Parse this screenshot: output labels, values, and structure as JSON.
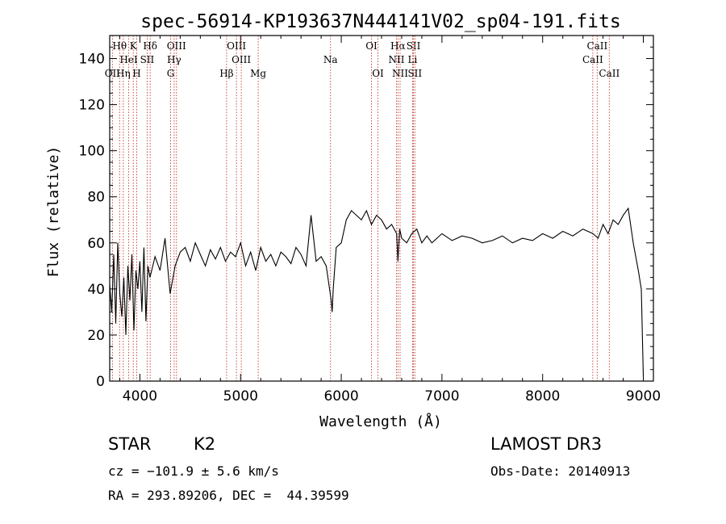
{
  "chart_data": {
    "type": "line",
    "title": "spec-56914-KP193637N444141V02_sp04-191.fits",
    "xlabel": "Wavelength (Å)",
    "ylabel": "Flux (relative)",
    "xlim": [
      3700,
      9100
    ],
    "ylim": [
      0,
      150
    ],
    "xticks": [
      4000,
      5000,
      6000,
      7000,
      8000,
      9000
    ],
    "yticks": [
      0,
      20,
      40,
      60,
      80,
      100,
      120,
      140
    ],
    "xtick_labels": [
      "4000",
      "5000",
      "6000",
      "7000",
      "8000",
      "9000"
    ],
    "ytick_labels": [
      "0",
      "20",
      "40",
      "60",
      "80",
      "100",
      "120",
      "140"
    ],
    "grid": false,
    "series": [
      {
        "name": "flux",
        "x": [
          3700,
          3720,
          3740,
          3760,
          3780,
          3800,
          3820,
          3840,
          3860,
          3880,
          3900,
          3920,
          3940,
          3960,
          3980,
          4000,
          4020,
          4040,
          4060,
          4080,
          4100,
          4150,
          4200,
          4250,
          4300,
          4350,
          4400,
          4450,
          4500,
          4550,
          4600,
          4650,
          4700,
          4750,
          4800,
          4850,
          4900,
          4950,
          5000,
          5050,
          5100,
          5150,
          5200,
          5250,
          5300,
          5350,
          5400,
          5450,
          5500,
          5550,
          5600,
          5650,
          5700,
          5750,
          5800,
          5850,
          5900,
          5910,
          5920,
          5950,
          6000,
          6050,
          6100,
          6150,
          6200,
          6250,
          6300,
          6350,
          6400,
          6450,
          6500,
          6550,
          6563,
          6580,
          6600,
          6650,
          6700,
          6750,
          6800,
          6850,
          6900,
          6950,
          7000,
          7100,
          7200,
          7300,
          7400,
          7500,
          7600,
          7700,
          7800,
          7900,
          8000,
          8100,
          8200,
          8300,
          8400,
          8500,
          8550,
          8600,
          8650,
          8700,
          8750,
          8800,
          8850,
          8900,
          8950,
          8980,
          9000
        ],
        "y": [
          42,
          30,
          55,
          25,
          60,
          38,
          28,
          45,
          20,
          50,
          35,
          55,
          22,
          48,
          40,
          52,
          30,
          58,
          26,
          50,
          45,
          54,
          48,
          62,
          38,
          50,
          56,
          58,
          52,
          60,
          55,
          50,
          57,
          53,
          58,
          52,
          56,
          54,
          60,
          50,
          56,
          48,
          58,
          52,
          55,
          50,
          56,
          54,
          51,
          58,
          55,
          50,
          72,
          52,
          54,
          50,
          35,
          30,
          40,
          58,
          60,
          70,
          74,
          72,
          70,
          74,
          68,
          72,
          70,
          66,
          68,
          64,
          52,
          66,
          62,
          60,
          64,
          66,
          60,
          63,
          60,
          62,
          64,
          61,
          63,
          62,
          60,
          61,
          63,
          60,
          62,
          61,
          64,
          62,
          65,
          63,
          66,
          64,
          62,
          68,
          64,
          70,
          68,
          72,
          75,
          60,
          48,
          40,
          2
        ]
      }
    ],
    "spectral_lines": [
      {
        "name": "Hθ",
        "x": 3798,
        "row": 1
      },
      {
        "name": "K",
        "x": 3934,
        "row": 1
      },
      {
        "name": "Hδ",
        "x": 4102,
        "row": 1
      },
      {
        "name": "OIII",
        "x": 4363,
        "row": 1
      },
      {
        "name": "OIII",
        "x": 4959,
        "row": 1
      },
      {
        "name": "OI",
        "x": 6300,
        "row": 1
      },
      {
        "name": "Hα",
        "x": 6563,
        "row": 1
      },
      {
        "name": "SII",
        "x": 6717,
        "row": 1
      },
      {
        "name": "CaII",
        "x": 8542,
        "row": 1
      },
      {
        "name": "HeI",
        "x": 3889,
        "row": 2
      },
      {
        "name": "SII",
        "x": 4072,
        "row": 2
      },
      {
        "name": "Hγ",
        "x": 4340,
        "row": 2
      },
      {
        "name": "OIII",
        "x": 5007,
        "row": 2
      },
      {
        "name": "Na",
        "x": 5893,
        "row": 2
      },
      {
        "name": "NII",
        "x": 6548,
        "row": 2
      },
      {
        "name": "Li",
        "x": 6708,
        "row": 2
      },
      {
        "name": "CaII",
        "x": 8498,
        "row": 2
      },
      {
        "name": "OII",
        "x": 3727,
        "row": 3
      },
      {
        "name": "Hη",
        "x": 3835,
        "row": 3
      },
      {
        "name": "H",
        "x": 3968,
        "row": 3
      },
      {
        "name": "G",
        "x": 4305,
        "row": 3
      },
      {
        "name": "Hβ",
        "x": 4861,
        "row": 3
      },
      {
        "name": "Mg",
        "x": 5175,
        "row": 3
      },
      {
        "name": "OI",
        "x": 6364,
        "row": 3
      },
      {
        "name": "NII",
        "x": 6584,
        "row": 3
      },
      {
        "name": "SII",
        "x": 6731,
        "row": 3
      },
      {
        "name": "CaII",
        "x": 8662,
        "row": 3
      }
    ]
  },
  "info": {
    "class": "STAR",
    "subclass": "K2",
    "survey": "LAMOST DR3",
    "cz": "cz = −101.9 ± 5.6 km/s",
    "obs_date": "Obs-Date: 20140913",
    "radec": "RA = 293.89206, DEC =  44.39599"
  },
  "colors": {
    "line_marker": "#c0392b",
    "spectrum": "#000000"
  }
}
